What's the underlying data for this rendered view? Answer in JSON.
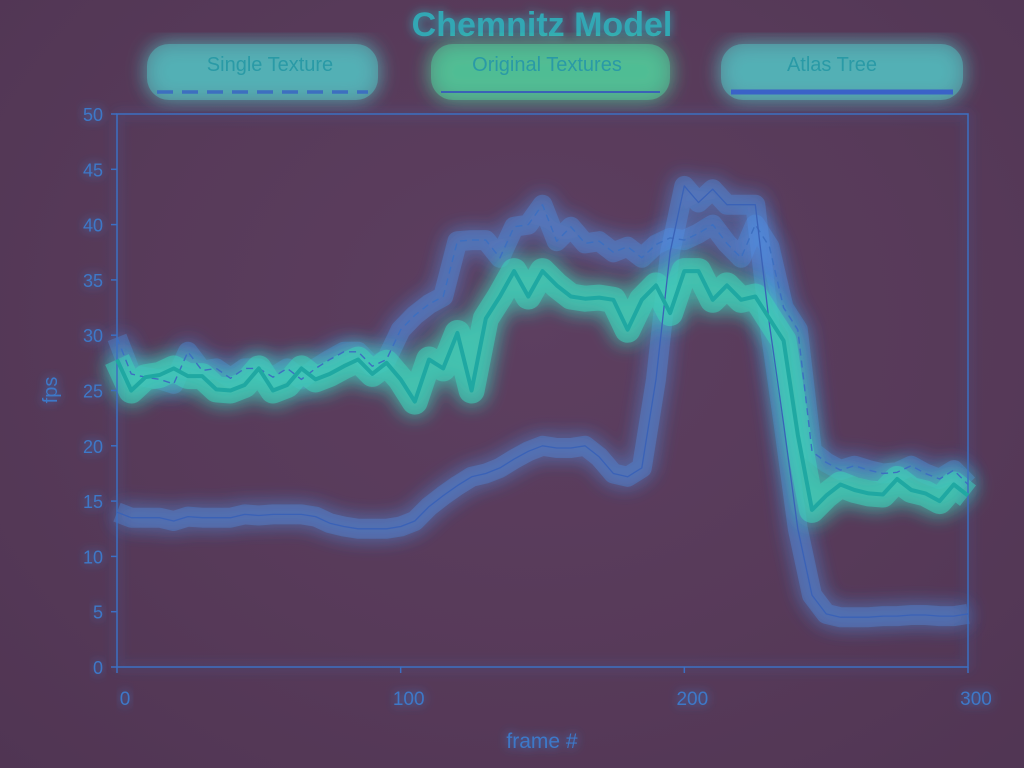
{
  "colors": {
    "background": "#5a3d5c",
    "axis": "#3c6fc2",
    "tick_text": "#3e78c8",
    "title": "#2a9ea6",
    "single_texture": "#3d6fc0",
    "original_textures": "#3a62b7",
    "atlas_tree": "#1fa8a2"
  },
  "chart_data": {
    "type": "line",
    "title": "Chemnitz Model",
    "xlabel": "frame #",
    "ylabel": "fps",
    "xlim": [
      0,
      300
    ],
    "ylim": [
      0,
      50
    ],
    "x_ticks": [
      "0",
      "100",
      "200",
      "300"
    ],
    "y_ticks": [
      "0",
      "5",
      "10",
      "15",
      "20",
      "25",
      "30",
      "35",
      "40",
      "45",
      "50"
    ],
    "grid": false,
    "legend_position": "top",
    "series": [
      {
        "name": "Single Texture",
        "style": "dashed",
        "color": "#3d6fc0",
        "x": [
          0,
          5,
          10,
          15,
          20,
          25,
          30,
          35,
          40,
          45,
          50,
          55,
          60,
          65,
          70,
          75,
          80,
          85,
          90,
          95,
          100,
          105,
          110,
          115,
          120,
          125,
          130,
          135,
          140,
          145,
          150,
          155,
          160,
          165,
          170,
          175,
          180,
          185,
          190,
          195,
          200,
          205,
          210,
          215,
          220,
          225,
          230,
          235,
          240,
          245,
          250,
          255,
          260,
          265,
          270,
          275,
          280,
          285,
          290,
          295,
          300
        ],
        "y": [
          29.8,
          26.5,
          26.2,
          26.0,
          25.6,
          28.5,
          26.8,
          27.0,
          26.1,
          27.0,
          27.0,
          26.2,
          27.0,
          26.0,
          27.0,
          27.8,
          28.5,
          28.5,
          27.2,
          27.8,
          30.5,
          31.8,
          32.8,
          33.5,
          38.5,
          38.6,
          38.6,
          37.0,
          39.8,
          40.0,
          41.8,
          38.5,
          39.8,
          38.3,
          38.5,
          37.5,
          38.0,
          37.0,
          38.2,
          38.8,
          38.6,
          39.2,
          40.0,
          38.3,
          37.0,
          40.0,
          38.0,
          32.5,
          30.5,
          19.5,
          18.5,
          17.8,
          18.2,
          17.8,
          17.5,
          17.6,
          18.2,
          17.5,
          17.0,
          17.8,
          16.5
        ]
      },
      {
        "name": "Original Textures",
        "style": "solid-thin",
        "color": "#3a62b7",
        "x": [
          0,
          5,
          10,
          15,
          20,
          25,
          30,
          35,
          40,
          45,
          50,
          55,
          60,
          65,
          70,
          75,
          80,
          85,
          90,
          95,
          100,
          105,
          110,
          115,
          120,
          125,
          130,
          135,
          140,
          145,
          150,
          155,
          160,
          165,
          170,
          175,
          180,
          185,
          190,
          195,
          200,
          205,
          210,
          215,
          220,
          225,
          230,
          235,
          240,
          245,
          250,
          255,
          260,
          265,
          270,
          275,
          280,
          285,
          290,
          295,
          300
        ],
        "y": [
          14.0,
          13.5,
          13.5,
          13.5,
          13.2,
          13.6,
          13.5,
          13.5,
          13.5,
          13.8,
          13.7,
          13.8,
          13.8,
          13.8,
          13.6,
          13.0,
          12.7,
          12.5,
          12.5,
          12.5,
          12.7,
          13.2,
          14.5,
          15.5,
          16.4,
          17.2,
          17.5,
          18.0,
          18.8,
          19.5,
          20.0,
          19.8,
          19.8,
          20.0,
          19.0,
          17.5,
          17.2,
          18.0,
          26.0,
          37.5,
          43.5,
          42.0,
          43.2,
          41.8,
          41.8,
          41.8,
          31.0,
          22.0,
          12.5,
          6.5,
          4.8,
          4.5,
          4.5,
          4.5,
          4.6,
          4.6,
          4.7,
          4.7,
          4.6,
          4.6,
          4.8
        ]
      },
      {
        "name": "Atlas Tree",
        "style": "solid-thick",
        "color": "#1fa8a2",
        "x": [
          0,
          5,
          10,
          15,
          20,
          25,
          30,
          35,
          40,
          45,
          50,
          55,
          60,
          65,
          70,
          75,
          80,
          85,
          90,
          95,
          100,
          105,
          110,
          115,
          120,
          125,
          130,
          135,
          140,
          145,
          150,
          155,
          160,
          165,
          170,
          175,
          180,
          185,
          190,
          195,
          200,
          205,
          210,
          215,
          220,
          225,
          230,
          235,
          240,
          245,
          250,
          255,
          260,
          265,
          270,
          275,
          280,
          285,
          290,
          295,
          300
        ],
        "y": [
          27.8,
          25.0,
          26.2,
          26.4,
          27.0,
          26.3,
          26.3,
          25.1,
          25.0,
          25.5,
          27.0,
          25.0,
          25.5,
          27.0,
          26.0,
          26.5,
          27.2,
          27.8,
          26.5,
          27.5,
          26.0,
          24.0,
          27.8,
          27.0,
          30.2,
          25.0,
          31.5,
          33.5,
          35.8,
          33.5,
          35.8,
          34.5,
          33.5,
          33.3,
          33.4,
          33.2,
          30.5,
          33.2,
          34.5,
          32.0,
          35.8,
          35.8,
          33.2,
          34.5,
          33.2,
          33.5,
          31.5,
          29.5,
          21.0,
          14.2,
          15.5,
          16.5,
          16.0,
          15.7,
          15.6,
          17.0,
          16.0,
          15.7,
          15.0,
          16.5,
          15.5
        ]
      }
    ]
  }
}
